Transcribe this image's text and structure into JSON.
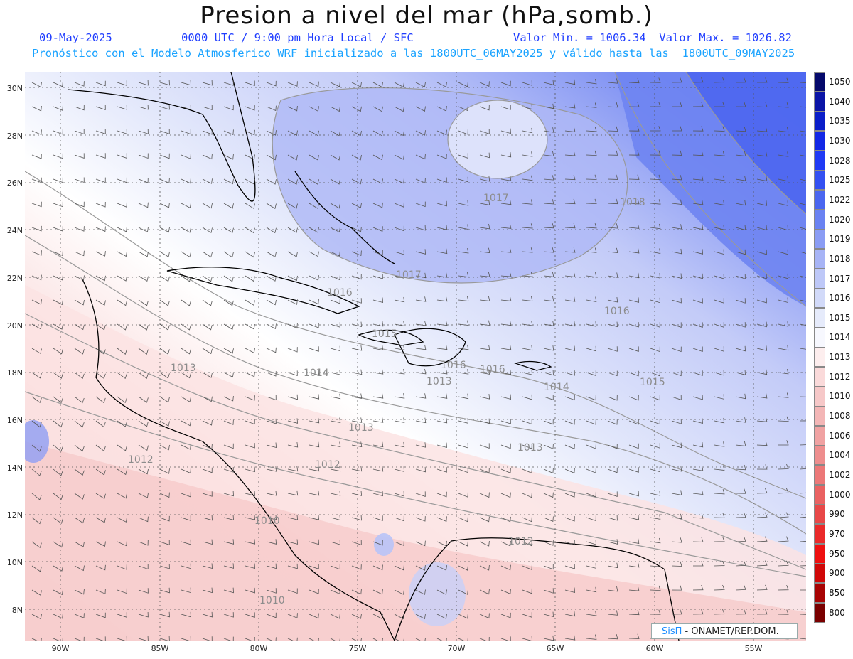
{
  "header": {
    "title": "Presion a nivel del mar (hPa,somb.)",
    "date": "09-May-2025",
    "time_line": "0000 UTC / 9:00 pm Hora Local / SFC",
    "minmax": "Valor Min. = 1006.34  Valor Max. = 1026.82",
    "model_line": "Pronóstico con el Modelo Atmosferico WRF inicializado a las 1800UTC_06MAY2025 y válido hasta las  1800UTC_09MAY2025"
  },
  "map": {
    "lat_labels": [
      "30N",
      "28N",
      "26N",
      "24N",
      "22N",
      "20N",
      "18N",
      "16N",
      "14N",
      "12N",
      "10N",
      "8N"
    ],
    "lon_labels": [
      "90W",
      "85W",
      "80W",
      "75W",
      "70W",
      "65W",
      "60W",
      "55W"
    ],
    "contour_labels": [
      "1017",
      "1018",
      "1017",
      "1016",
      "1016",
      "1015",
      "1016",
      "1016",
      "1015",
      "1014",
      "1013",
      "1013",
      "1013",
      "1014",
      "1012",
      "1012",
      "1013",
      "1010",
      "1012",
      "1010"
    ]
  },
  "colorbar": {
    "labels": [
      "1050",
      "1040",
      "1035",
      "1030",
      "1028",
      "1025",
      "1022",
      "1020",
      "1019",
      "1018",
      "1017",
      "1016",
      "1015",
      "1014",
      "1013",
      "1012",
      "1010",
      "1008",
      "1006",
      "1004",
      "1002",
      "1000",
      "990",
      "970",
      "950",
      "900",
      "850",
      "800"
    ],
    "colors": [
      "#05096b",
      "#0a14a6",
      "#0a1ec9",
      "#1228e6",
      "#1f3af5",
      "#3350f2",
      "#4a66f0",
      "#6a82f2",
      "#8a9cf4",
      "#a7b4f6",
      "#bec8f8",
      "#d2daf9",
      "#e6ebfb",
      "#f7f8fe",
      "#fdeeee",
      "#fadada",
      "#f6c8c8",
      "#f3b6b6",
      "#f0a2a2",
      "#ee8e8e",
      "#ec7878",
      "#ea6262",
      "#e84848",
      "#ea2a2a",
      "#ee1010",
      "#d00808",
      "#a80404",
      "#7a0000"
    ]
  },
  "credit": {
    "logo": "SisΠ",
    "text": " -  ONAMET/REP.DOM."
  }
}
